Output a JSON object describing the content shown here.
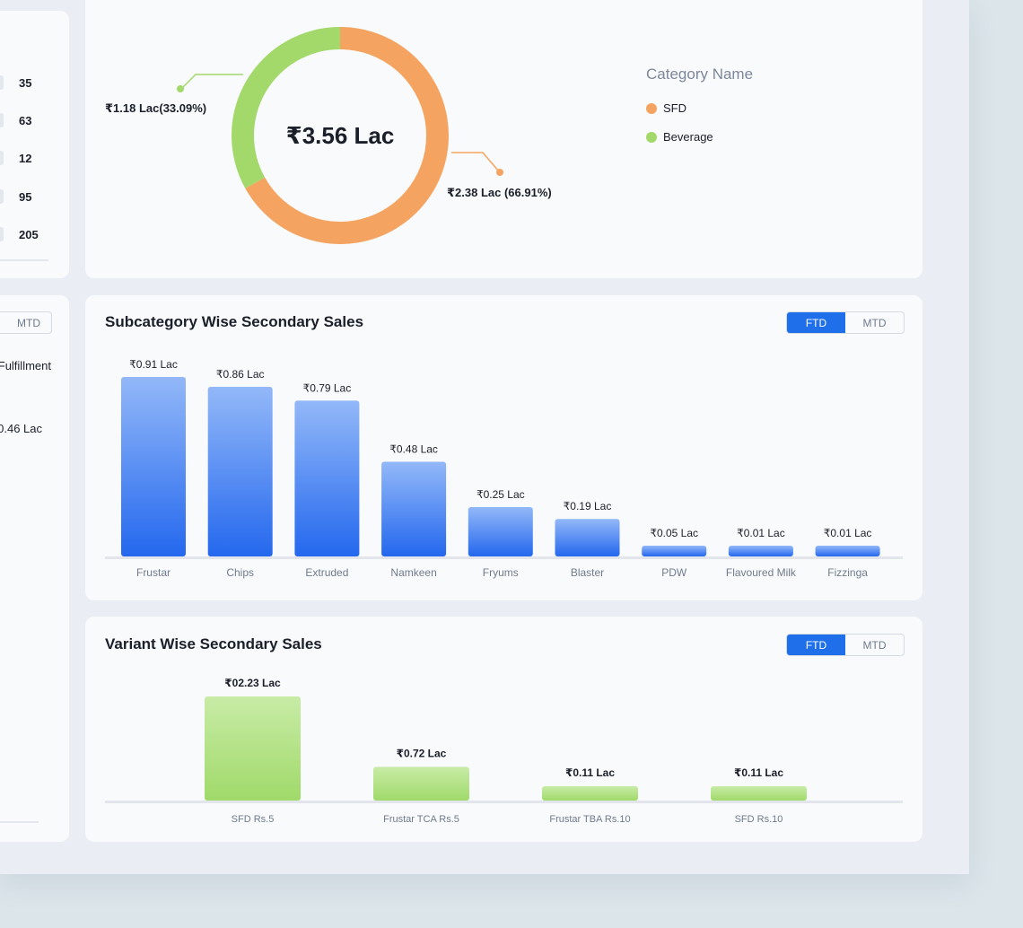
{
  "left_panel": {
    "rows": [
      "35",
      "63",
      "12",
      "95",
      "205"
    ],
    "toggle_label": "MTD",
    "fulfillment_label": "Fulfillment",
    "fulfillment_value": "0.46 Lac"
  },
  "category_chart": {
    "center_label": "₹3.56 Lac",
    "legend_title": "Category Name",
    "colors": {
      "SFD": "#f4a460",
      "Beverage": "#a3d86a"
    },
    "chart_data": {
      "type": "pie",
      "categories": [
        "SFD",
        "Beverage"
      ],
      "values": [
        66.91,
        33.09
      ],
      "labels": [
        "₹2.38 Lac (66.91%)",
        "₹1.18 Lac(33.09%)"
      ],
      "legend_title": "Category Name",
      "legend_position": "right"
    }
  },
  "subcategory": {
    "title": "Subcategory Wise Secondary Sales",
    "toggle": {
      "ftd": "FTD",
      "mtd": "MTD",
      "active": "FTD"
    },
    "chart_data": {
      "type": "bar",
      "categories": [
        "Frustar",
        "Chips",
        "Extruded",
        "Namkeen",
        "Fryums",
        "Blaster",
        "PDW",
        "Flavoured Milk",
        "Fizzinga"
      ],
      "values": [
        0.91,
        0.86,
        0.79,
        0.48,
        0.25,
        0.19,
        0.05,
        0.01,
        0.01
      ],
      "data_labels": [
        "₹0.91 Lac",
        "₹0.86 Lac",
        "₹0.79 Lac",
        "₹0.48 Lac",
        "₹0.25 Lac",
        "₹0.19 Lac",
        "₹0.05 Lac",
        "₹0.01 Lac",
        "₹0.01 Lac"
      ],
      "grid": false,
      "colors": {
        "top": "#93b8f8",
        "bottom": "#2468ee"
      }
    }
  },
  "variant": {
    "title": "Variant Wise Secondary Sales",
    "toggle": {
      "ftd": "FTD",
      "mtd": "MTD",
      "active": "FTD"
    },
    "chart_data": {
      "type": "bar",
      "categories": [
        "SFD Rs.5",
        "Frustar TCA Rs.5",
        "Frustar TBA Rs.10",
        "SFD Rs.10"
      ],
      "values": [
        2.23,
        0.72,
        0.11,
        0.11
      ],
      "data_labels": [
        "₹02.23 Lac",
        "₹0.72 Lac",
        "₹0.11 Lac",
        "₹0.11 Lac"
      ],
      "grid": false,
      "colors": {
        "top": "#c8eba6",
        "bottom": "#a0da6a"
      }
    }
  }
}
